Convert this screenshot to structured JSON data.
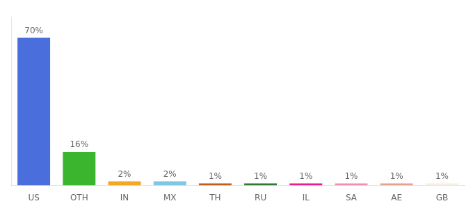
{
  "chart_data": {
    "type": "bar",
    "categories": [
      "US",
      "OTH",
      "IN",
      "MX",
      "TH",
      "RU",
      "IL",
      "SA",
      "AE",
      "GB"
    ],
    "values": [
      70,
      16,
      2,
      2,
      1,
      1,
      1,
      1,
      1,
      1
    ],
    "value_labels": [
      "70%",
      "16%",
      "2%",
      "2%",
      "1%",
      "1%",
      "1%",
      "1%",
      "1%",
      "1%"
    ],
    "colors": [
      "#4a6edb",
      "#3cb52e",
      "#f5a623",
      "#7ec8e3",
      "#c45c1a",
      "#2e7d32",
      "#e91e8c",
      "#f48fb1",
      "#e8a090",
      "#f5f0e0"
    ],
    "data_labels": true,
    "ylim": [
      0,
      80
    ],
    "tick_labels": "x",
    "grid": false
  }
}
